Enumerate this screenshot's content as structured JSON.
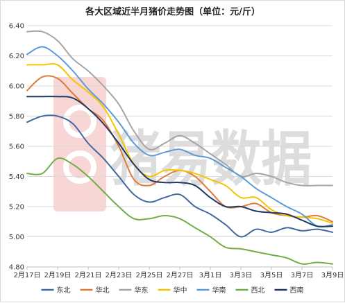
{
  "chart_data": {
    "type": "line",
    "title": "各大区域近半月猪价走势图（单位：元/斤）",
    "xlabel": "",
    "ylabel": "",
    "ylim": [
      4.8,
      6.4
    ],
    "yticks": [
      "4.80",
      "5.00",
      "5.20",
      "5.40",
      "5.60",
      "5.80",
      "6.00",
      "6.20",
      "6.40"
    ],
    "x": [
      "2月17日",
      "2月18日",
      "2月19日",
      "2月20日",
      "2月21日",
      "2月22日",
      "2月23日",
      "2月24日",
      "2月25日",
      "2月26日",
      "2月27日",
      "2月28日",
      "3月1日",
      "3月2日",
      "3月3日",
      "3月4日",
      "3月5日",
      "3月6日",
      "3月7日",
      "3月8日",
      "3月9日"
    ],
    "xtick_labels": [
      "2月17日",
      "2月19日",
      "2月21日",
      "2月23日",
      "2月25日",
      "2月27日",
      "3月1日",
      "3月3日",
      "3月5日",
      "3月7日",
      "3月9日"
    ],
    "grid": true,
    "legend_position": "bottom",
    "series": [
      {
        "name": "东北",
        "color": "#41699f",
        "values": [
          5.76,
          5.8,
          5.8,
          5.75,
          5.62,
          5.52,
          5.4,
          5.28,
          5.23,
          5.26,
          5.28,
          5.2,
          5.15,
          5.08,
          5.0,
          5.05,
          5.03,
          5.06,
          5.04,
          5.05,
          5.03
        ]
      },
      {
        "name": "华北",
        "color": "#e07b39",
        "values": [
          5.97,
          6.06,
          6.05,
          5.95,
          5.85,
          5.77,
          5.6,
          5.38,
          5.34,
          5.4,
          5.44,
          5.4,
          5.3,
          5.2,
          5.2,
          5.22,
          5.16,
          5.14,
          5.13,
          5.14,
          5.1
        ]
      },
      {
        "name": "华东",
        "color": "#a5a5a5",
        "values": [
          6.36,
          6.36,
          6.3,
          6.18,
          6.1,
          6.0,
          5.88,
          5.7,
          5.58,
          5.62,
          5.67,
          5.62,
          5.55,
          5.48,
          5.4,
          5.42,
          5.4,
          5.36,
          5.34,
          5.34,
          5.34
        ]
      },
      {
        "name": "华中",
        "color": "#f5c400",
        "values": [
          6.14,
          6.14,
          6.14,
          6.04,
          5.96,
          5.86,
          5.68,
          5.48,
          5.4,
          5.44,
          5.44,
          5.42,
          5.38,
          5.34,
          5.26,
          5.26,
          5.18,
          5.14,
          5.13,
          5.12,
          5.09
        ]
      },
      {
        "name": "华南",
        "color": "#5b9bd5",
        "values": [
          6.21,
          6.26,
          6.2,
          6.1,
          5.98,
          5.88,
          5.76,
          5.62,
          5.54,
          5.56,
          5.58,
          5.54,
          5.52,
          5.46,
          5.4,
          5.32,
          5.26,
          5.2,
          5.15,
          5.07,
          5.08
        ]
      },
      {
        "name": "西北",
        "color": "#70ad47",
        "values": [
          5.42,
          5.42,
          5.52,
          5.48,
          5.4,
          5.3,
          5.2,
          5.12,
          5.12,
          5.14,
          5.12,
          5.06,
          5.0,
          4.93,
          4.92,
          4.9,
          4.88,
          4.86,
          4.82,
          4.83,
          4.82
        ]
      },
      {
        "name": "西南",
        "color": "#1f3864",
        "values": [
          5.93,
          5.93,
          5.93,
          5.92,
          5.85,
          5.75,
          5.62,
          5.48,
          5.38,
          5.36,
          5.36,
          5.34,
          5.26,
          5.2,
          5.2,
          5.17,
          5.16,
          5.15,
          5.11,
          5.07,
          5.07
        ]
      }
    ]
  },
  "watermark": {
    "text": "猪易数据"
  }
}
